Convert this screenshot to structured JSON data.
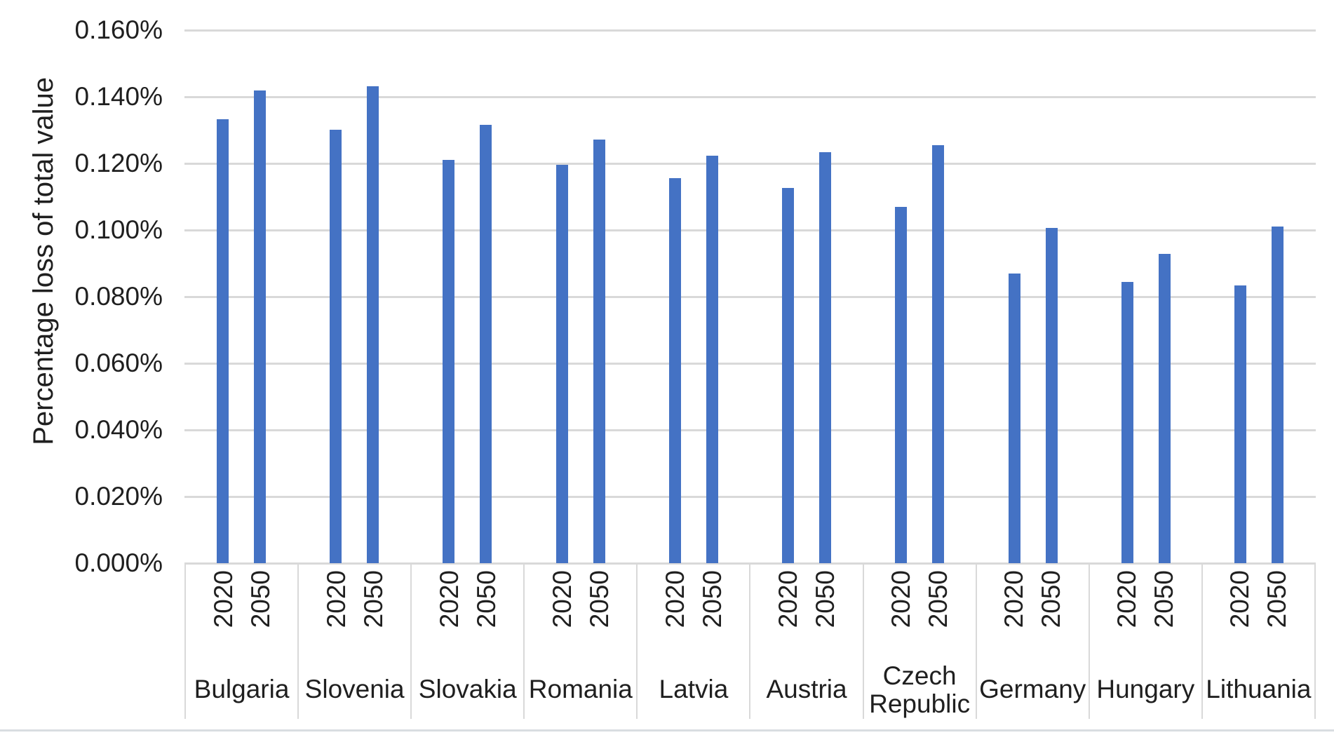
{
  "chart_data": {
    "type": "bar",
    "title": "",
    "ylabel": "Percentage loss of total value",
    "xlabel": "",
    "y_ticks": [
      "0.160%",
      "0.140%",
      "0.120%",
      "0.100%",
      "0.080%",
      "0.060%",
      "0.040%",
      "0.020%",
      "0.000%"
    ],
    "ylim": [
      0,
      0.16
    ],
    "gridline_step": 0.02,
    "grid": true,
    "legend_position": "none",
    "categories": [
      "Bulgaria",
      "Slovenia",
      "Slovakia",
      "Romania",
      "Latvia",
      "Austria",
      "Czech Republic",
      "Germany",
      "Hungary",
      "Lithuania"
    ],
    "series": [
      {
        "name": "2020",
        "values": [
          0.1333,
          0.1302,
          0.121,
          0.1195,
          0.1155,
          0.1126,
          0.1069,
          0.0869,
          0.0845,
          0.0834
        ]
      },
      {
        "name": "2050",
        "values": [
          0.1418,
          0.1432,
          0.1315,
          0.1271,
          0.1224,
          0.1233,
          0.1255,
          0.1006,
          0.0929,
          0.1011
        ]
      }
    ],
    "value_unit": "% of total value",
    "bar_color": "#4472C4",
    "gridline_color": "#D9D9D9"
  }
}
